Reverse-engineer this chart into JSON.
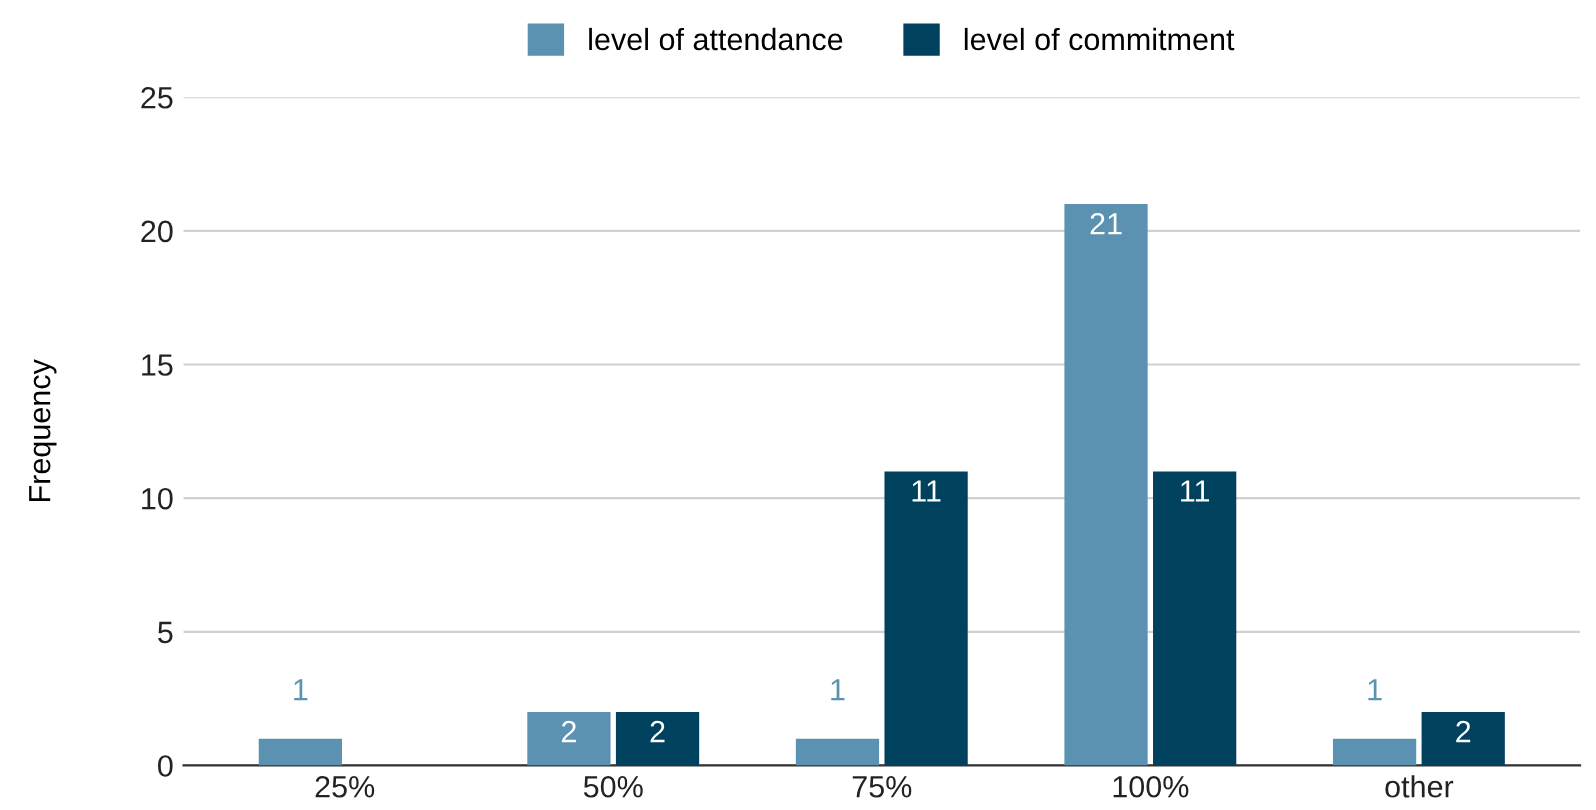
{
  "chart_data": {
    "type": "bar",
    "ylabel": "Frequency",
    "categories": [
      "25%",
      "50%",
      "75%",
      "100%",
      "other"
    ],
    "series": [
      {
        "name": "level of attendance",
        "color": "#5b92b1",
        "values": [
          1,
          2,
          1,
          21,
          1
        ],
        "value_labels": [
          "1",
          "2",
          "1",
          "21",
          "1"
        ]
      },
      {
        "name": "level of commitment",
        "color": "#00425e",
        "values": [
          0,
          2,
          11,
          11,
          2
        ],
        "value_labels": [
          null,
          "2",
          "11",
          "11",
          "2"
        ]
      }
    ],
    "ylim": [
      0,
      25
    ],
    "yticks": [
      0,
      5,
      10,
      15,
      20,
      25
    ],
    "grid": "y",
    "legend": "top"
  }
}
